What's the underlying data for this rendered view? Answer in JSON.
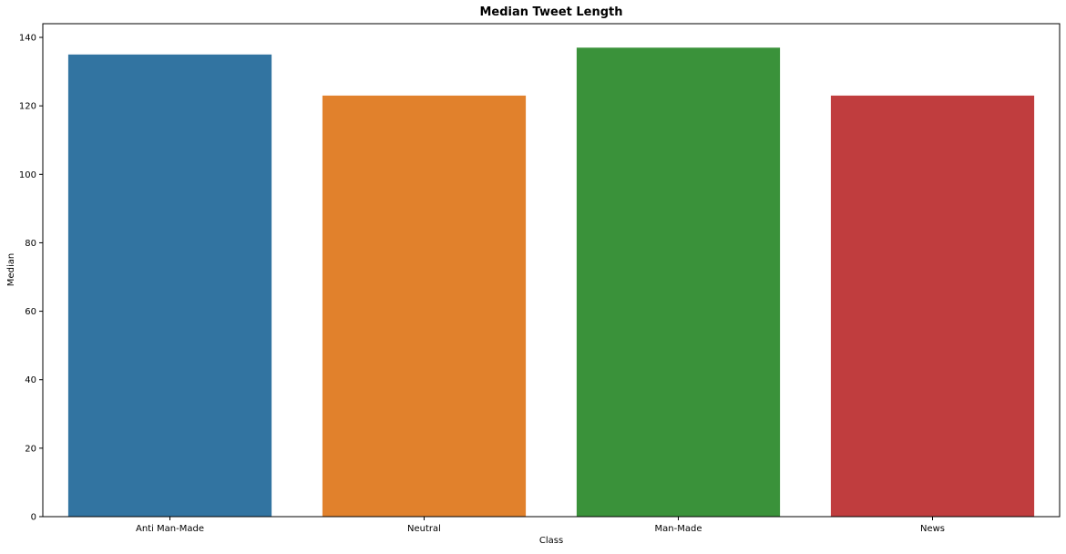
{
  "chart_data": {
    "type": "bar",
    "title": "Median Tweet Length",
    "xlabel": "Class",
    "ylabel": "Median",
    "categories": [
      "Anti Man-Made",
      "Neutral",
      "Man-Made",
      "News"
    ],
    "values": [
      135,
      123,
      137,
      123
    ],
    "colors": [
      "#3274a1",
      "#e1812c",
      "#3a923a",
      "#c03d3e"
    ],
    "ylim": [
      0,
      144
    ],
    "yticks": [
      0,
      20,
      40,
      60,
      80,
      100,
      120,
      140
    ],
    "grid": false,
    "legend": "none"
  }
}
